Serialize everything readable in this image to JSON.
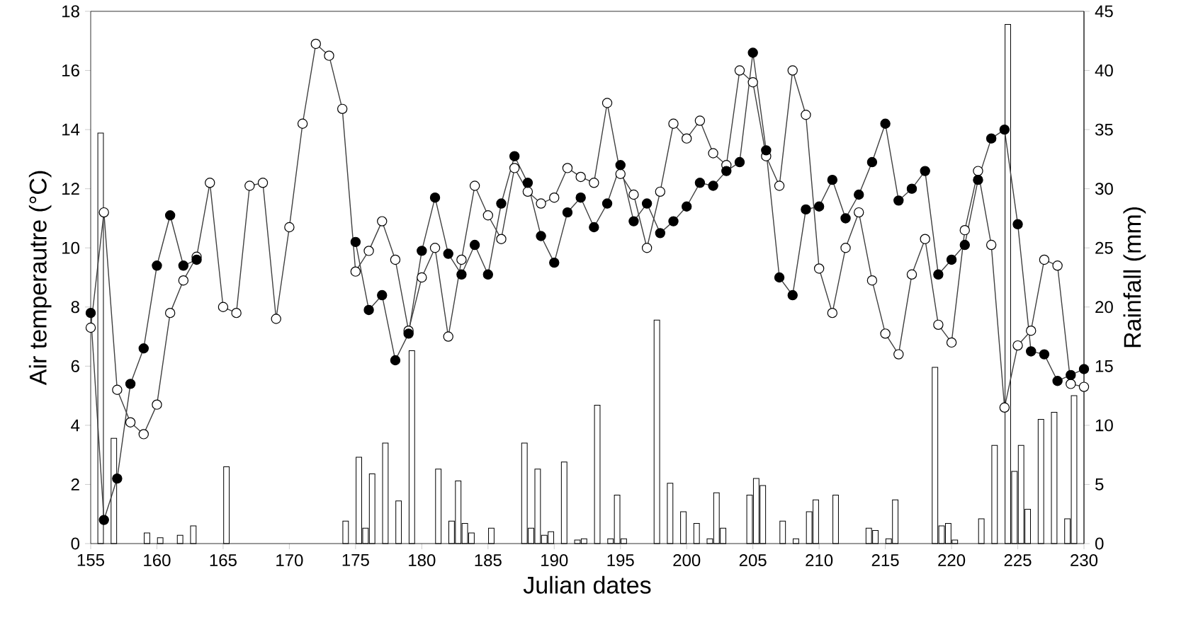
{
  "chart_data": {
    "type": "line",
    "xlabel": "Julian dates",
    "ylabel": "Air temperautre (°C)",
    "y2label": "Rainfall (mm)",
    "x": [
      155,
      156,
      157,
      158,
      159,
      160,
      161,
      162,
      163,
      164,
      165,
      166,
      167,
      168,
      169,
      170,
      171,
      172,
      173,
      174,
      175,
      176,
      177,
      178,
      179,
      180,
      181,
      182,
      183,
      184,
      185,
      186,
      187,
      188,
      189,
      190,
      191,
      192,
      193,
      194,
      195,
      196,
      197,
      198,
      199,
      200,
      201,
      202,
      203,
      204,
      205,
      206,
      207,
      208,
      209,
      210,
      211,
      212,
      213,
      214,
      215,
      216,
      217,
      218,
      219,
      220,
      221,
      222,
      223,
      224,
      225,
      226,
      227,
      228,
      229,
      230
    ],
    "xlim": [
      155,
      230
    ],
    "xticks": [
      155,
      160,
      165,
      170,
      175,
      180,
      185,
      190,
      195,
      200,
      205,
      210,
      215,
      220,
      225,
      230
    ],
    "ylim": [
      0,
      18
    ],
    "yticks": [
      0,
      2,
      4,
      6,
      8,
      10,
      12,
      14,
      16,
      18
    ],
    "y2lim": [
      0,
      45
    ],
    "y2ticks": [
      0,
      5,
      10,
      15,
      20,
      25,
      30,
      35,
      40,
      45
    ],
    "marker": "circle",
    "line_style": "solid",
    "series": [
      {
        "type": "bar",
        "axis": "y2",
        "color": "#ffffff",
        "values": [
          null,
          34.7,
          8.9,
          null,
          null,
          null,
          null,
          0.7,
          1.5,
          null,
          null,
          null,
          null,
          null,
          null,
          null,
          null,
          null,
          null,
          null,
          null,
          1.3,
          null,
          null,
          null,
          null,
          null,
          null,
          5.3,
          0.9,
          null,
          null,
          null,
          8.5,
          6.3,
          1.0,
          6.9,
          0.3,
          null,
          null,
          4.1,
          null,
          null,
          18.9,
          5.1,
          2.7,
          1.7,
          0.4,
          1.3,
          null,
          4.1,
          4.9,
          null,
          null,
          null,
          3.7,
          null,
          null,
          null,
          1.3,
          null,
          3.7,
          null,
          null,
          14.9,
          1.7,
          null,
          null,
          null,
          null,
          6.1,
          2.9,
          10.5,
          11.1,
          2.1,
          null
        ]
      },
      {
        "type": "bar",
        "axis": "y2",
        "color": "#ffffff",
        "values": [
          null,
          null,
          null,
          null,
          0.9,
          0.5,
          null,
          null,
          null,
          null,
          6.5,
          null,
          null,
          null,
          null,
          null,
          null,
          null,
          null,
          1.9,
          7.3,
          5.9,
          8.5,
          3.6,
          16.3,
          null,
          6.3,
          1.9,
          1.7,
          null,
          1.3,
          null,
          null,
          1.3,
          0.7,
          null,
          null,
          0.4,
          11.7,
          0.4,
          0.4,
          null,
          null,
          null,
          null,
          null,
          null,
          4.3,
          null,
          null,
          5.5,
          null,
          1.9,
          0.4,
          2.7,
          null,
          4.1,
          null,
          null,
          1.1,
          0.4,
          null,
          null,
          null,
          1.5,
          0.3,
          null,
          2.1,
          8.3,
          43.9,
          8.3,
          null,
          null,
          null,
          12.5,
          null
        ]
      },
      {
        "color": "#ffffff",
        "values": [
          7.3,
          11.2,
          5.2,
          4.1,
          3.7,
          4.7,
          7.8,
          8.9,
          9.7,
          12.2,
          8.0,
          7.8,
          12.1,
          12.2,
          7.6,
          10.7,
          14.2,
          16.9,
          16.5,
          14.7,
          9.2,
          9.9,
          10.9,
          9.6,
          7.2,
          9.0,
          10.0,
          7.0,
          9.6,
          12.1,
          11.1,
          10.3,
          12.7,
          11.9,
          11.5,
          11.7,
          12.7,
          12.4,
          12.2,
          14.9,
          12.5,
          11.8,
          10.0,
          11.9,
          14.2,
          13.7,
          14.3,
          13.2,
          12.8,
          16.0,
          15.6,
          13.1,
          12.1,
          16.0,
          14.5,
          9.3,
          7.8,
          10.0,
          11.2,
          8.9,
          7.1,
          6.4,
          9.1,
          10.3,
          7.4,
          6.8,
          10.6,
          12.6,
          10.1,
          4.6,
          6.7,
          7.2,
          9.6,
          9.4,
          5.4,
          5.3
        ]
      },
      {
        "color": "#000000",
        "values": [
          7.8,
          0.8,
          2.2,
          5.4,
          6.6,
          9.4,
          11.1,
          9.4,
          9.6,
          null,
          null,
          null,
          null,
          null,
          null,
          null,
          null,
          null,
          null,
          null,
          10.2,
          7.9,
          8.4,
          6.2,
          7.1,
          9.9,
          11.7,
          9.8,
          9.1,
          10.1,
          9.1,
          11.5,
          13.1,
          12.2,
          10.4,
          9.5,
          11.2,
          11.7,
          10.7,
          11.5,
          12.8,
          10.9,
          11.5,
          10.5,
          10.9,
          11.4,
          12.2,
          12.1,
          12.6,
          12.9,
          16.6,
          13.3,
          9.0,
          8.4,
          11.3,
          11.4,
          12.3,
          11.0,
          11.8,
          12.9,
          14.2,
          11.6,
          12.0,
          12.6,
          9.1,
          9.6,
          10.1,
          12.3,
          13.7,
          14.0,
          10.8,
          6.5,
          6.4,
          5.5,
          5.7,
          5.9
        ]
      }
    ]
  }
}
